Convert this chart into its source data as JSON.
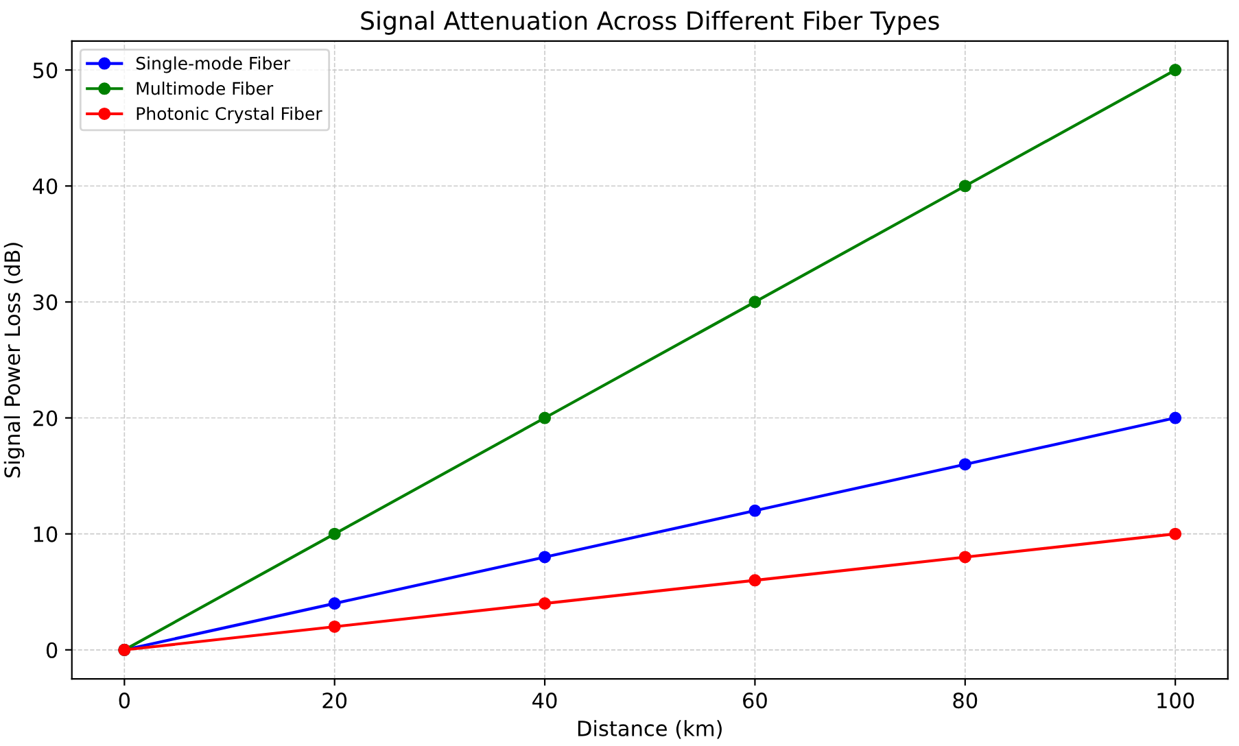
{
  "chart_data": {
    "type": "line",
    "title": "Signal Attenuation Across Different Fiber Types",
    "xlabel": "Distance (km)",
    "ylabel": "Signal Power Loss (dB)",
    "x": [
      0,
      20,
      40,
      60,
      80,
      100
    ],
    "series": [
      {
        "name": "Single-mode Fiber",
        "color": "#0000ff",
        "values": [
          0,
          4,
          8,
          12,
          16,
          20
        ]
      },
      {
        "name": "Multimode Fiber",
        "color": "#008000",
        "values": [
          0,
          10,
          20,
          30,
          40,
          50
        ]
      },
      {
        "name": "Photonic Crystal Fiber",
        "color": "#ff0000",
        "values": [
          0,
          2,
          4,
          6,
          8,
          10
        ]
      }
    ],
    "xlim": [
      -5,
      105
    ],
    "ylim": [
      -2.5,
      52.5
    ],
    "xticks": [
      0,
      20,
      40,
      60,
      80,
      100
    ],
    "yticks": [
      0,
      10,
      20,
      30,
      40,
      50
    ],
    "grid": true,
    "legend": "top left",
    "marker": "circle",
    "line_style": "solid"
  }
}
